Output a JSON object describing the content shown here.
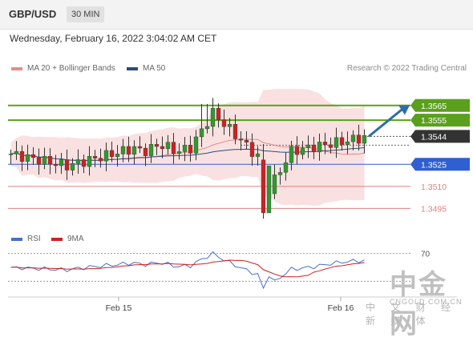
{
  "header": {
    "symbol": "GBP/USD",
    "timeframe": "30 MIN"
  },
  "datetime": "Wednesday, February 16, 2022 3:04:02 AM CET",
  "legend": {
    "bb": {
      "label": "MA 20 + Bollinger Bands",
      "color": "#e88a8a"
    },
    "ma50": {
      "label": "MA 50",
      "color": "#2a4d7f"
    }
  },
  "credit": "Research © 2022 Trading Central",
  "rsi_legend": {
    "rsi": {
      "label": "RSI",
      "color": "#4a6fc9"
    },
    "ma9": {
      "label": "9MA",
      "color": "#cc2222"
    }
  },
  "watermark": {
    "big": "中金网",
    "sub": "中 文 财 经 新 媒 体",
    "domain": "CNGOLD.COM.CN"
  },
  "chart_data": {
    "type": "candlestick",
    "price_range": [
      1.348,
      1.3585
    ],
    "levels": [
      {
        "label": "1.3565",
        "value": 1.3565,
        "style": "resistance",
        "color": "#5aa01e"
      },
      {
        "label": "1.3555",
        "value": 1.3555,
        "style": "resistance",
        "color": "#5aa01e"
      },
      {
        "label": "1.3544",
        "value": 1.3544,
        "style": "current",
        "color": "#333333"
      },
      {
        "label": "1.3525",
        "value": 1.3525,
        "style": "pivot",
        "color": "#2f5fd0"
      },
      {
        "label": "1.3510",
        "value": 1.351,
        "style": "support",
        "color": "#e08080"
      },
      {
        "label": "1.3495",
        "value": 1.3495,
        "style": "support",
        "color": "#e08080"
      }
    ],
    "x_labels": [
      "Feb 15",
      "Feb 16"
    ],
    "rsi_ticks": [
      "70"
    ],
    "rsi_range": [
      20,
      80
    ],
    "up_color": "#2e9a2e",
    "down_color": "#cc2222"
  }
}
